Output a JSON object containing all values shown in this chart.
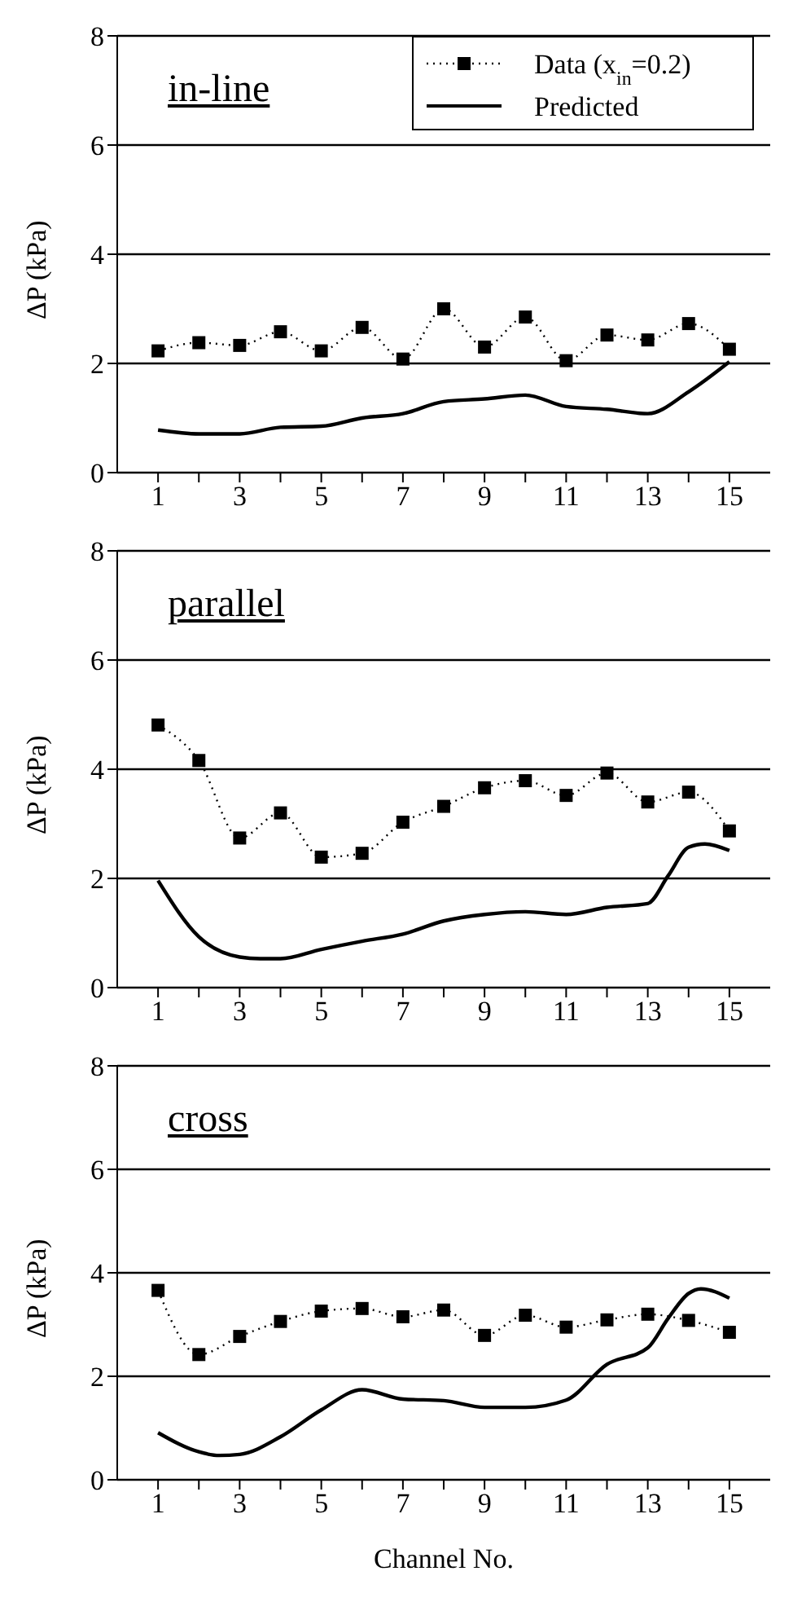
{
  "chart_data": [
    {
      "type": "line",
      "title": "in-line",
      "ylabel": "ΔP (kPa)",
      "xlim": [
        0,
        16
      ],
      "ylim": [
        0,
        8
      ],
      "yticks": [
        0,
        2,
        4,
        6,
        8
      ],
      "grid": "y",
      "legend": "top right",
      "xticks": [
        1,
        {
          "value": 2,
          "label": null
        },
        3,
        {
          "value": 4,
          "label": null
        },
        5,
        {
          "value": 6,
          "label": null
        },
        7,
        {
          "value": 8,
          "label": null
        },
        9,
        {
          "value": 10,
          "label": null
        },
        11,
        {
          "value": 12,
          "label": null
        },
        13,
        {
          "value": 14,
          "label": null
        },
        15
      ],
      "series": [
        {
          "name": "Data (x$_{in}$=0.2)",
          "type": "line",
          "color": "#000000",
          "marker": "square",
          "line_style": "dotted",
          "x": [
            1,
            2,
            3,
            4,
            5,
            6,
            7,
            8,
            9,
            10,
            11,
            12,
            13,
            14,
            15
          ],
          "values": [
            2.23,
            2.38,
            2.33,
            2.58,
            2.23,
            2.66,
            2.08,
            3.0,
            2.3,
            2.85,
            2.05,
            2.52,
            2.43,
            2.73,
            2.26
          ]
        },
        {
          "name": "Predicted",
          "type": "line",
          "color": "#000000",
          "marker": "none",
          "line_style": "solid",
          "x": [
            1,
            2,
            3,
            4,
            5,
            6,
            7,
            8,
            9,
            10,
            11,
            12,
            13,
            14,
            15
          ],
          "values": [
            0.78,
            0.71,
            0.71,
            0.83,
            0.85,
            1.0,
            1.08,
            1.3,
            1.35,
            1.42,
            1.21,
            1.16,
            1.08,
            1.48,
            2.03
          ]
        }
      ]
    },
    {
      "type": "line",
      "title": "parallel",
      "ylabel": "ΔP (kPa)",
      "xlim": [
        0,
        16
      ],
      "ylim": [
        0,
        8
      ],
      "yticks": [
        0,
        2,
        4,
        6,
        8
      ],
      "grid": "y",
      "xticks": [
        1,
        {
          "value": 2,
          "label": null
        },
        3,
        {
          "value": 4,
          "label": null
        },
        5,
        {
          "value": 6,
          "label": null
        },
        7,
        {
          "value": 8,
          "label": null
        },
        9,
        {
          "value": 10,
          "label": null
        },
        11,
        {
          "value": 12,
          "label": null
        },
        13,
        {
          "value": 14,
          "label": null
        },
        15
      ],
      "series": [
        {
          "type": "line",
          "color": "#000000",
          "marker": "square",
          "line_style": "dotted",
          "x": [
            1,
            2,
            3,
            4,
            5,
            6,
            7,
            8,
            9,
            10,
            11,
            12,
            13,
            14,
            15
          ],
          "values": [
            4.81,
            4.16,
            2.74,
            3.2,
            2.39,
            2.46,
            3.03,
            3.32,
            3.66,
            3.79,
            3.52,
            3.93,
            3.4,
            3.58,
            2.87
          ]
        },
        {
          "type": "line",
          "color": "#000000",
          "marker": "none",
          "line_style": "solid",
          "x": [
            1,
            2,
            3,
            3.5,
            4,
            5,
            6,
            7,
            8,
            9,
            10,
            11,
            12,
            13,
            13.5,
            14,
            14.4,
            15
          ],
          "values": [
            1.96,
            0.93,
            0.56,
            0.53,
            0.53,
            0.7,
            0.85,
            0.98,
            1.22,
            1.34,
            1.39,
            1.34,
            1.47,
            1.54,
            2.05,
            2.57,
            2.63,
            2.51
          ]
        }
      ]
    },
    {
      "type": "line",
      "title": "cross",
      "xlabel": "Channel No.",
      "ylabel": "ΔP (kPa)",
      "xlim": [
        0,
        16
      ],
      "ylim": [
        0,
        8
      ],
      "yticks": [
        0,
        2,
        4,
        6,
        8
      ],
      "grid": "y",
      "xticks": [
        1,
        {
          "value": 2,
          "label": null
        },
        3,
        {
          "value": 4,
          "label": null
        },
        5,
        {
          "value": 6,
          "label": null
        },
        7,
        {
          "value": 8,
          "label": null
        },
        9,
        {
          "value": 10,
          "label": null
        },
        11,
        {
          "value": 12,
          "label": null
        },
        13,
        {
          "value": 14,
          "label": null
        },
        15
      ],
      "series": [
        {
          "type": "line",
          "color": "#000000",
          "marker": "square",
          "line_style": "dotted",
          "x": [
            1,
            2,
            3,
            4,
            5,
            6,
            7,
            8,
            9,
            10,
            11,
            12,
            13,
            14,
            15
          ],
          "values": [
            3.66,
            2.42,
            2.77,
            3.06,
            3.26,
            3.31,
            3.15,
            3.28,
            2.79,
            3.18,
            2.95,
            3.09,
            3.2,
            3.08,
            2.85
          ]
        },
        {
          "type": "line",
          "color": "#000000",
          "marker": "none",
          "line_style": "solid",
          "x": [
            1,
            2,
            2.5,
            3,
            4,
            5,
            6,
            7,
            8,
            9,
            10,
            11,
            12,
            13,
            13.5,
            14,
            14.3,
            15
          ],
          "values": [
            0.91,
            0.54,
            0.47,
            0.49,
            0.83,
            1.35,
            1.74,
            1.56,
            1.53,
            1.4,
            1.4,
            1.54,
            2.23,
            2.55,
            3.12,
            3.6,
            3.69,
            3.51
          ]
        }
      ]
    }
  ]
}
